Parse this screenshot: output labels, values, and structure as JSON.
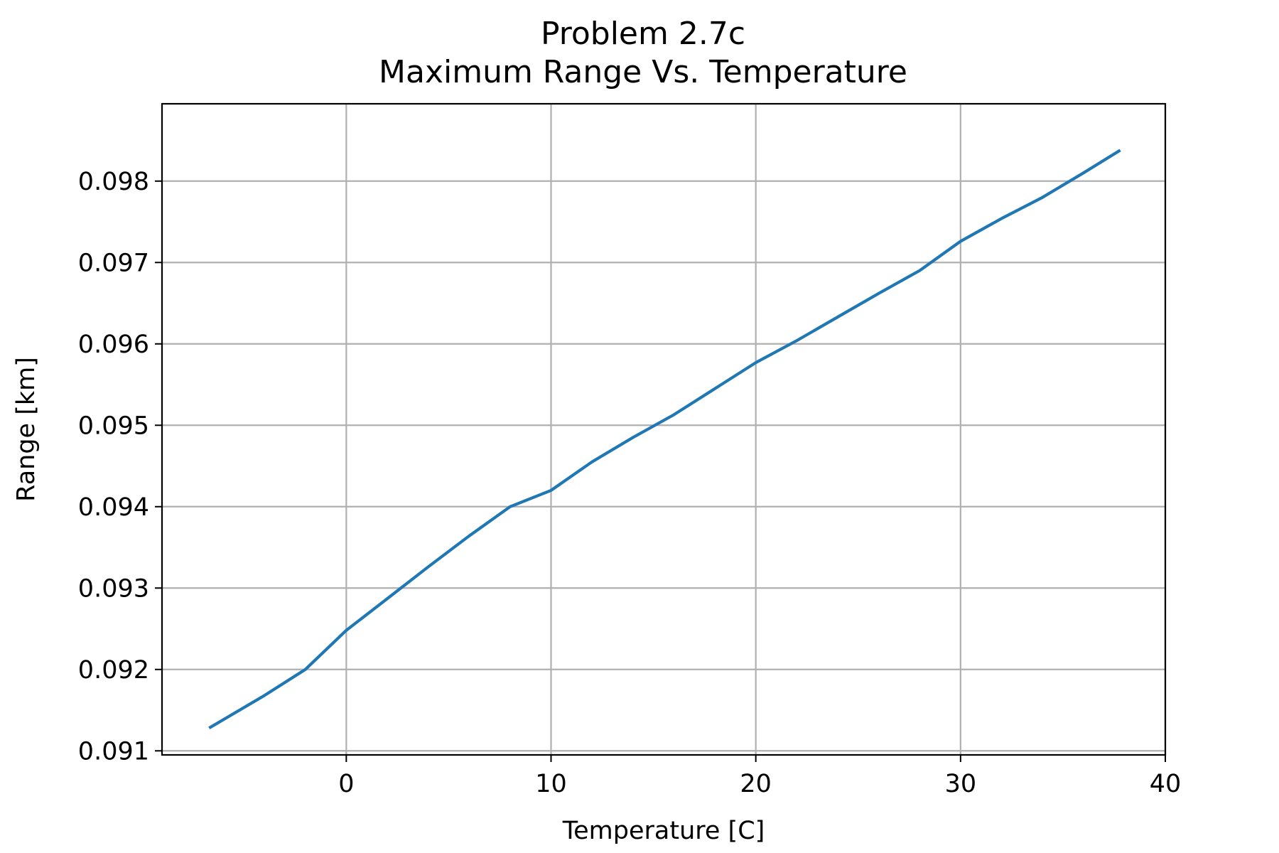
{
  "chart_data": {
    "type": "line",
    "title": "Problem 2.7c",
    "subtitle": "Maximum Range Vs. Temperature",
    "xlabel": "Temperature [C]",
    "ylabel": "Range [km]",
    "xlim": [
      -9,
      40
    ],
    "ylim": [
      0.09095,
      0.09895
    ],
    "xticks": [
      0,
      10,
      20,
      30,
      40
    ],
    "xtick_labels": [
      "0",
      "10",
      "20",
      "30",
      "40"
    ],
    "yticks": [
      0.091,
      0.092,
      0.093,
      0.094,
      0.095,
      0.096,
      0.097,
      0.098
    ],
    "ytick_labels": [
      "0.091",
      "0.092",
      "0.093",
      "0.094",
      "0.095",
      "0.096",
      "0.097",
      "0.098"
    ],
    "grid": true,
    "series": [
      {
        "color": "#1f77b4",
        "x": [
          -6.7,
          -4,
          -2,
          0,
          2,
          4,
          6,
          8,
          10,
          12,
          14,
          16,
          18,
          20,
          22,
          24,
          26,
          28,
          30,
          32,
          34,
          36,
          37.8
        ],
        "y": [
          0.09128,
          0.09168,
          0.092,
          0.09248,
          0.09287,
          0.09326,
          0.09364,
          0.094,
          0.0942,
          0.09455,
          0.09485,
          0.09513,
          0.09545,
          0.09577,
          0.09604,
          0.09633,
          0.09662,
          0.0969,
          0.09726,
          0.09754,
          0.0978,
          0.0981,
          0.09838
        ]
      }
    ]
  }
}
